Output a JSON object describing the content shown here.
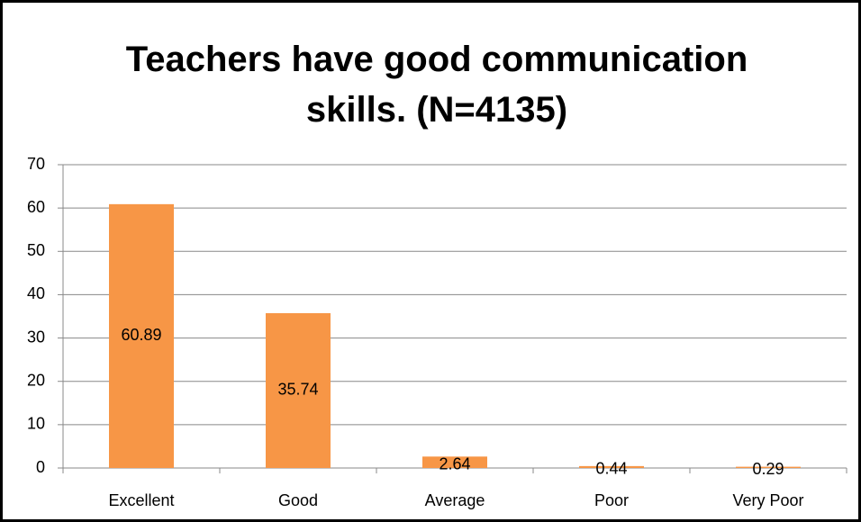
{
  "chart_data": {
    "type": "bar",
    "title": "Teachers have good communication skills. (N=4135)",
    "categories": [
      "Excellent",
      "Good",
      "Average",
      "Poor",
      "Very Poor"
    ],
    "values": [
      60.89,
      35.74,
      2.64,
      0.44,
      0.29
    ],
    "color": "#f79646",
    "ylim": [
      0,
      70
    ],
    "yticks": [
      0,
      10,
      20,
      30,
      40,
      50,
      60,
      70
    ],
    "grid": true,
    "data_labels": true
  }
}
